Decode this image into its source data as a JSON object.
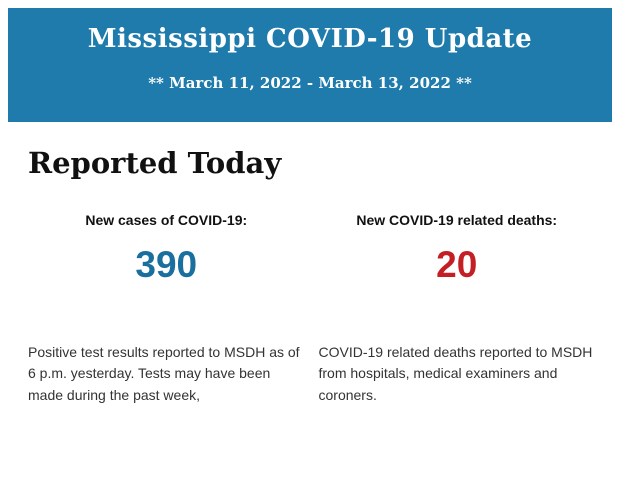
{
  "banner": {
    "title": "Mississippi COVID-19 Update",
    "date_range": "** March 11, 2022 - March 13, 2022 **",
    "background_color": "#1f7bac",
    "text_color": "#ffffff"
  },
  "main": {
    "section_title": "Reported Today",
    "stats": [
      {
        "label": "New cases of COVID-19:",
        "value": "390",
        "value_color": "#1a6f9f",
        "description": "Positive test results reported to MSDH as of 6 p.m. yesterday. Tests may have been made during the past week,"
      },
      {
        "label": "New COVID-19 related deaths:",
        "value": "20",
        "value_color": "#c41f25",
        "description": "COVID-19 related deaths reported to MSDH from hospitals, medical examiners and coroners."
      }
    ]
  }
}
